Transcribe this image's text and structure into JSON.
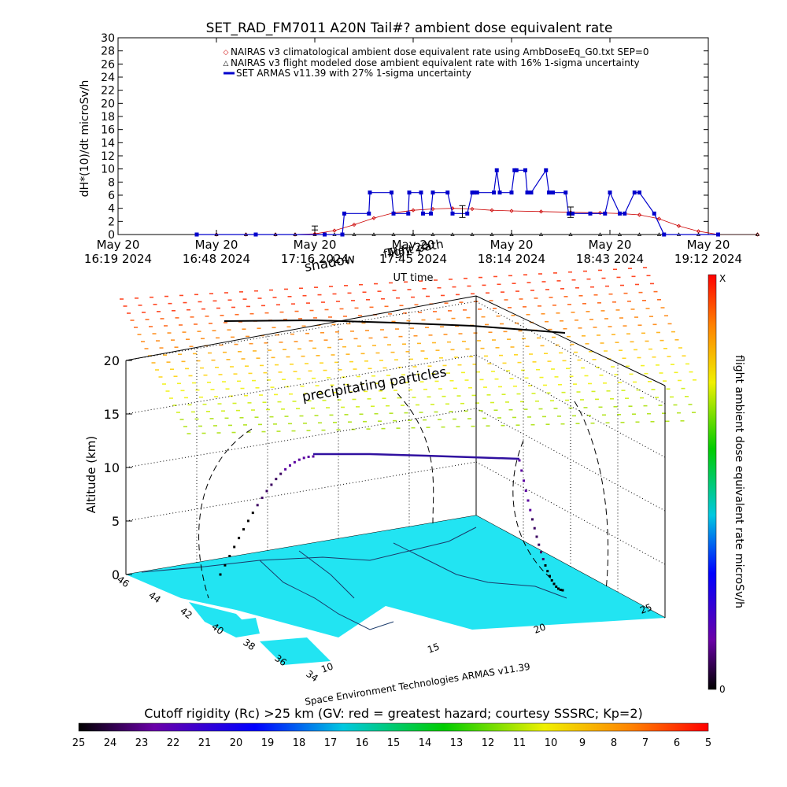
{
  "chart_data": [
    {
      "type": "line",
      "title": "SET_RAD_FM7011  A20N Tail#? ambient dose equivalent rate",
      "ylabel": "dH*(10)/dt microSv/h",
      "xlabel": "UT time",
      "ylim": [
        0,
        30
      ],
      "yticks": [
        "0",
        "2",
        "4",
        "6",
        "8",
        "10",
        "12",
        "14",
        "16",
        "18",
        "20",
        "22",
        "24",
        "26",
        "28",
        "30"
      ],
      "xticks": [
        {
          "top": "May 20",
          "bottom": "16:19 2024"
        },
        {
          "top": "May 20",
          "bottom": "16:48 2024"
        },
        {
          "top": "May 20",
          "bottom": "17:16 2024"
        },
        {
          "top": "May 20",
          "bottom": "17:45 2024"
        },
        {
          "top": "May 20",
          "bottom": "18:14 2024"
        },
        {
          "top": "May 20",
          "bottom": "18:43 2024"
        },
        {
          "top": "May 20",
          "bottom": "19:12 2024"
        }
      ],
      "legend_position": "top-right",
      "legend": [
        "NAIRAS v3 climatological ambient dose equivalent rate using AmbDoseEq_G0.txt SEP=0",
        "NAIRAS v3 flight modeled dose ambient equivalent rate with 16% 1-sigma uncertainty",
        "SET ARMAS v11.39 with 27% 1-sigma uncertainty"
      ],
      "series": [
        {
          "name": "NAIRAS v3 climatological ambient dose equivalent rate using AmbDoseEq_G0.txt SEP=0",
          "color": "#cc0000",
          "marker": "diamond",
          "x": [
            0.8,
            1.0,
            1.3,
            1.6,
            1.8,
            2.0,
            2.2,
            2.4,
            2.6,
            2.8,
            3.0,
            3.2,
            3.4,
            3.6,
            3.8,
            4.0,
            4.3,
            4.6,
            4.9,
            5.1,
            5.3,
            5.5,
            5.7,
            5.9,
            6.1,
            6.5
          ],
          "y": [
            0,
            0,
            0,
            0,
            0,
            0.1,
            0.6,
            1.5,
            2.5,
            3.3,
            3.7,
            3.9,
            4.0,
            3.9,
            3.7,
            3.6,
            3.5,
            3.4,
            3.3,
            3.2,
            3.0,
            2.4,
            1.3,
            0.5,
            0,
            0
          ]
        },
        {
          "name": "NAIRAS v3 flight modeled dose ambient equivalent rate with 16% 1-sigma uncertainty",
          "color": "#000000",
          "marker": "triangle",
          "x": [
            0.8,
            1.0,
            1.3,
            1.6,
            1.8,
            2.0,
            2.2,
            2.4,
            2.6,
            2.8,
            3.0,
            3.2,
            3.4,
            3.6,
            3.8,
            4.0,
            4.3,
            4.6,
            4.9,
            5.1,
            5.3,
            5.5,
            5.7,
            5.9,
            6.1,
            6.5
          ],
          "y": [
            0,
            0,
            0,
            0,
            0,
            0,
            0,
            0,
            0,
            0,
            0,
            0,
            0,
            0,
            0,
            0,
            0,
            0,
            0,
            0,
            0,
            0,
            0,
            0,
            0,
            0
          ]
        },
        {
          "name": "SET ARMAS v11.39 with 27% 1-sigma uncertainty",
          "color": "#0000cc",
          "marker": "square",
          "x": [
            0.8,
            1.4,
            2.1,
            2.28,
            2.3,
            2.55,
            2.56,
            2.78,
            2.8,
            2.95,
            2.96,
            3.08,
            3.1,
            3.18,
            3.2,
            3.35,
            3.4,
            3.55,
            3.6,
            3.62,
            3.65,
            3.82,
            3.85,
            3.88,
            4.0,
            4.03,
            4.05,
            4.14,
            4.16,
            4.2,
            4.35,
            4.38,
            4.42,
            4.55,
            4.58,
            4.62,
            4.8,
            4.95,
            5.0,
            5.1,
            5.15,
            5.25,
            5.3,
            5.45,
            5.55,
            6.1
          ],
          "y": [
            0,
            0,
            0,
            0,
            3.2,
            3.2,
            6.4,
            6.4,
            3.2,
            3.2,
            6.4,
            6.4,
            3.2,
            3.2,
            6.4,
            6.4,
            3.2,
            3.2,
            6.4,
            6.4,
            6.4,
            6.4,
            9.8,
            6.4,
            6.4,
            9.8,
            9.8,
            9.8,
            6.4,
            6.4,
            9.8,
            6.4,
            6.4,
            6.4,
            3.2,
            3.2,
            3.2,
            3.2,
            6.4,
            3.2,
            3.2,
            6.4,
            6.4,
            3.2,
            0,
            0
          ]
        }
      ],
      "x_range": [
        0,
        6
      ],
      "error_bars": [
        {
          "x": 2.0,
          "y": 1.0,
          "err": 0.3
        },
        {
          "x": 3.5,
          "y": 3.5,
          "err": 0.9
        },
        {
          "x": 4.6,
          "y": 3.4,
          "err": 0.8
        }
      ]
    },
    {
      "type": "3d-trajectory",
      "zlabel": "Altitude (km)",
      "zticks": [
        "0",
        "5",
        "10",
        "15",
        "20"
      ],
      "lat_ticks": [
        "46",
        "44",
        "42",
        "40",
        "38",
        "36",
        "34"
      ],
      "lon_ticks": [
        "10",
        "15",
        "20",
        "25"
      ],
      "annotations": [
        "shadow",
        "flight path",
        "precipitating particles"
      ],
      "overlay_text": "May 20",
      "credit": "Space Environment Technologies ARMAS v11.39",
      "colorbar": {
        "label": "flight ambient dose equivalent rate microSv/h",
        "top": "X",
        "bottom": "0"
      }
    },
    {
      "type": "colorbar",
      "title": "Cutoff rigidity (Rc) >25 km (GV: red = greatest hazard; courtesy SSSRC; Kp=2)",
      "ticks": [
        "25",
        "24",
        "23",
        "22",
        "21",
        "20",
        "19",
        "18",
        "17",
        "16",
        "15",
        "14",
        "13",
        "12",
        "11",
        "10",
        "9",
        "8",
        "7",
        "6",
        "5"
      ]
    }
  ],
  "colors": {
    "nairas_clim": "#cc0000",
    "nairas_flight": "#000000",
    "armas": "#0000cc",
    "map_land": "#22e4f2"
  }
}
